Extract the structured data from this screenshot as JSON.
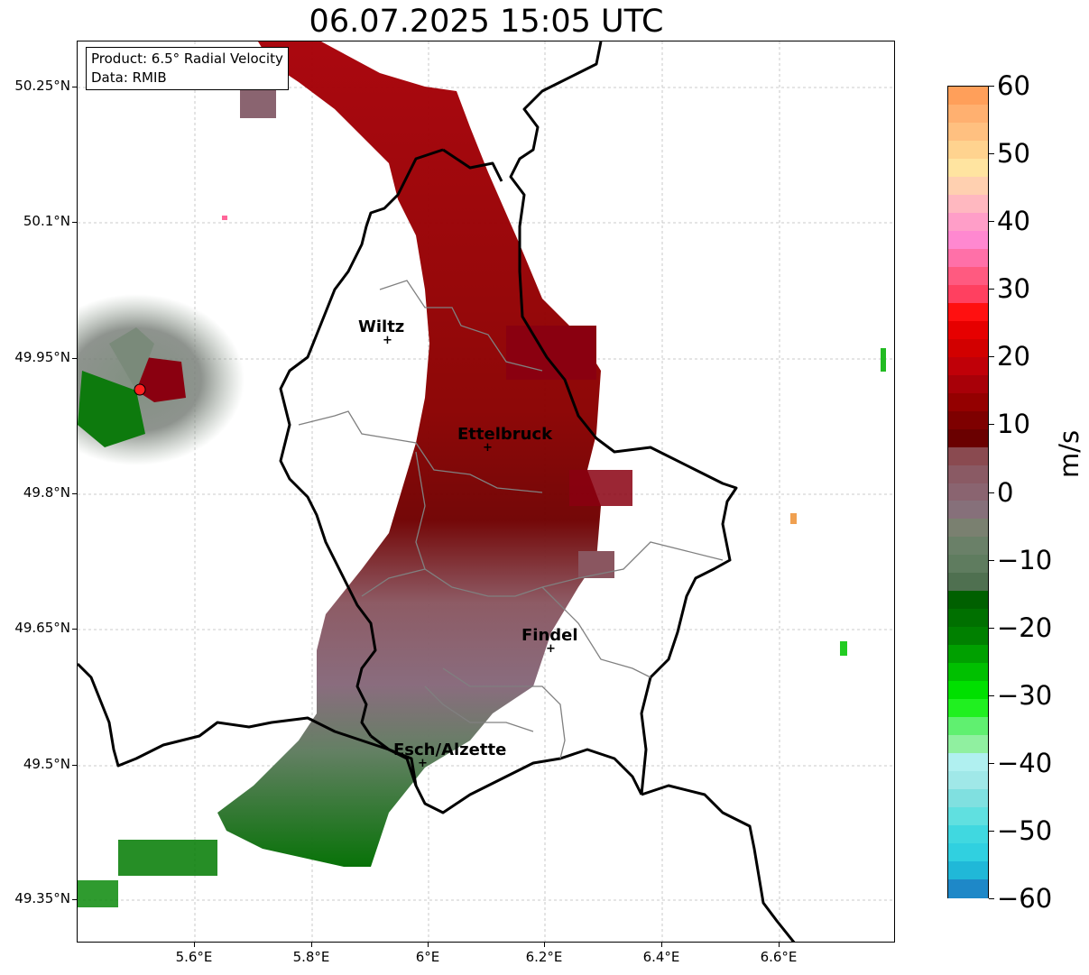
{
  "title": "06.07.2025 15:05 UTC",
  "info_box": {
    "product": "Product: 6.5° Radial Velocity",
    "data": "Data: RMIB"
  },
  "axes": {
    "y_ticks": [
      "50.25°N",
      "50.1°N",
      "49.95°N",
      "49.8°N",
      "49.65°N",
      "49.5°N",
      "49.35°N"
    ],
    "x_ticks": [
      "5.6°E",
      "5.8°E",
      "6°E",
      "6.2°E",
      "6.4°E",
      "6.6°E"
    ]
  },
  "cities": [
    {
      "name": "Wiltz"
    },
    {
      "name": "Ettelbruck"
    },
    {
      "name": "Findel"
    },
    {
      "name": "Esch/Alzette"
    }
  ],
  "colorbar": {
    "label": "m/s",
    "ticks": [
      "60",
      "50",
      "40",
      "30",
      "20",
      "10",
      "0",
      "−10",
      "−20",
      "−30",
      "−40",
      "−50",
      "−60"
    ],
    "range": [
      -60,
      60
    ]
  },
  "colors": {
    "positive_strong": "#cc0000",
    "positive_mid": "#8b0000",
    "near_zero_pos": "#8a6470",
    "near_zero_neg": "#5e7b5e",
    "negative_mid": "#007a00",
    "radar_site": "#ff2020"
  }
}
